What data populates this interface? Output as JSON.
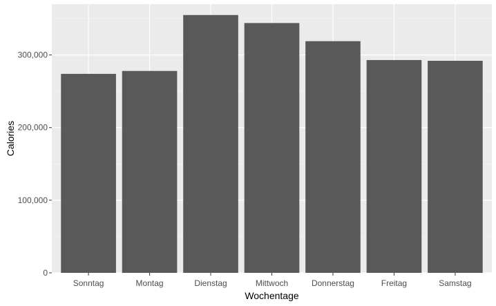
{
  "chart_data": {
    "type": "bar",
    "categories": [
      "Sonntag",
      "Montag",
      "Dienstag",
      "Mittwoch",
      "Donnerstag",
      "Freitag",
      "Samstag"
    ],
    "values": [
      274000,
      278000,
      355000,
      344000,
      319000,
      293000,
      292000
    ],
    "title": "",
    "xlabel": "Wochentage",
    "ylabel": "Calories",
    "ylim": [
      0,
      370000
    ],
    "yticks": [
      0,
      100000,
      200000,
      300000
    ],
    "ytick_labels": [
      "0",
      "100,000",
      "200,000",
      "300,000"
    ],
    "grid": true,
    "legend": "none",
    "colors": {
      "panel_bg": "#ebebeb",
      "grid_major": "#ffffff",
      "grid_minor": "#f5f5f5",
      "bar_fill": "#595959",
      "tick_mark": "#333333"
    }
  }
}
